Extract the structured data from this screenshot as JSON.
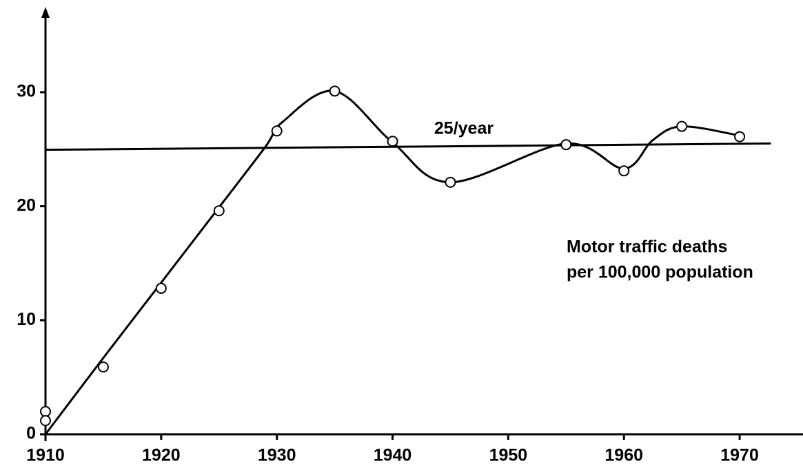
{
  "chart_data": {
    "type": "scatter",
    "x": [
      1910,
      1910,
      1915,
      1920,
      1925,
      1930,
      1935,
      1940,
      1945,
      1955,
      1960,
      1965,
      1970
    ],
    "values": [
      2.0,
      1.2,
      5.9,
      12.8,
      19.6,
      26.6,
      30.1,
      25.7,
      22.1,
      25.4,
      23.1,
      27.0,
      26.1
    ],
    "color": "#000000",
    "curve": {
      "x": [
        1910,
        1915,
        1920,
        1925,
        1929,
        1930.5,
        1935,
        1940,
        1945,
        1955,
        1960,
        1962.5,
        1965,
        1970
      ],
      "values": [
        0,
        6.7,
        13.3,
        19.9,
        25.2,
        27.4,
        30.1,
        25.6,
        22.1,
        25.5,
        23.3,
        25.8,
        27.0,
        26.2
      ]
    },
    "reference_line": {
      "label": "25/year",
      "x": [
        1910,
        1972.7
      ],
      "values": [
        24.95,
        25.5
      ]
    },
    "annotation": [
      "Motor traffic deaths",
      "per 100,000 population"
    ],
    "xlim": [
      1910,
      1975
    ],
    "ylim": [
      0,
      37
    ],
    "xticks": [
      1910,
      1920,
      1930,
      1940,
      1950,
      1960,
      1970
    ],
    "yticks": [
      0,
      10,
      20,
      30
    ]
  }
}
